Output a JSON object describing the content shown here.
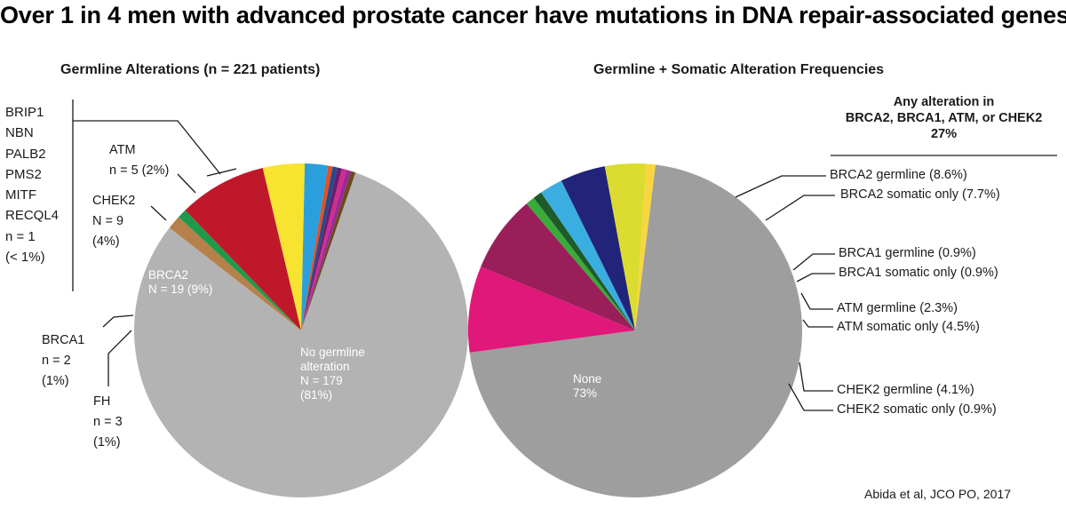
{
  "title": "Over 1 in 4 men with advanced prostate cancer have mutations in DNA repair-associated genes",
  "citation": "Abida et al, JCO PO, 2017",
  "chart_data": [
    {
      "type": "pie",
      "title": "Germline Alterations (n = 221 patients)",
      "slices": [
        {
          "name": "No germline alteration",
          "value": 179,
          "percent": "81%",
          "color": "#b3b3b3"
        },
        {
          "name": "FH",
          "value": 3,
          "percent": "1%",
          "color": "#b5804a"
        },
        {
          "name": "BRCA1",
          "value": 2,
          "percent": "1%",
          "color": "#1f9a4a"
        },
        {
          "name": "BRCA2",
          "value": 19,
          "percent": "9%",
          "color": "#c0182b"
        },
        {
          "name": "CHEK2",
          "value": 9,
          "percent": "4%",
          "color": "#f7e330"
        },
        {
          "name": "ATM",
          "value": 5,
          "percent": "2%",
          "color": "#2a9fdc"
        },
        {
          "name": "RECQL4",
          "value": 1,
          "percent": "< 1%",
          "color": "#e0502a"
        },
        {
          "name": "MITF",
          "value": 1,
          "percent": "< 1%",
          "color": "#234a8a"
        },
        {
          "name": "PMS2",
          "value": 1,
          "percent": "< 1%",
          "color": "#6a1e6e"
        },
        {
          "name": "PALB2",
          "value": 1,
          "percent": "< 1%",
          "color": "#d42a8e"
        },
        {
          "name": "NBN",
          "value": 1,
          "percent": "< 1%",
          "color": "#9a2a9a"
        },
        {
          "name": "BRIP1",
          "value": 1,
          "percent": "< 1%",
          "color": "#6b4a1e"
        }
      ],
      "labels": {
        "none_line1": "No germline",
        "none_line2": "alteration",
        "none_line3": "N = 179",
        "none_line4": "(81%)",
        "brca2_line1": "BRCA2",
        "brca2_line2": "N = 19 (9%)",
        "chek2_line1": "CHEK2",
        "chek2_line2": "N = 9",
        "chek2_line3": "(4%)",
        "atm_line1": "ATM",
        "atm_line2": "n = 5 (2%)",
        "brca1_line1": "BRCA1",
        "brca1_line2": "n = 2",
        "brca1_line3": "(1%)",
        "fh_line1": "FH",
        "fh_line2": "n = 3",
        "fh_line3": "(1%)",
        "group_genes": [
          "BRIP1",
          "NBN",
          "PALB2",
          "PMS2",
          "MITF",
          "RECQL4"
        ],
        "group_count": "n = 1",
        "group_percent": "(< 1%)"
      }
    },
    {
      "type": "pie",
      "title": "Germline + Somatic Alteration Frequencies",
      "annotation_line1": "Any alteration in",
      "annotation_line2": "BRCA2, BRCA1, ATM, or CHEK2",
      "annotation_line3": "27%",
      "slices": [
        {
          "name": "None",
          "value": 73,
          "label": "73%",
          "color": "#9e9e9e"
        },
        {
          "name": "BRCA2 germline",
          "value": 8.6,
          "label": "BRCA2 germline (8.6%)",
          "color": "#e0187a"
        },
        {
          "name": "BRCA2 somatic only",
          "value": 7.7,
          "label": "BRCA2 somatic only (7.7%)",
          "color": "#9a1e5a"
        },
        {
          "name": "BRCA1 germline",
          "value": 0.9,
          "label": "BRCA1 germline (0.9%)",
          "color": "#3aaa3a"
        },
        {
          "name": "BRCA1 somatic only",
          "value": 0.9,
          "label": "BRCA1 somatic only (0.9%)",
          "color": "#1e5a2a"
        },
        {
          "name": "ATM germline",
          "value": 2.3,
          "label": "ATM germline (2.3%)",
          "color": "#3aaee0"
        },
        {
          "name": "ATM somatic only",
          "value": 4.5,
          "label": "ATM somatic only (4.5%)",
          "color": "#22247a"
        },
        {
          "name": "CHEK2 germline",
          "value": 4.1,
          "label": "CHEK2 germline (4.1%)",
          "color": "#dcdc30"
        },
        {
          "name": "CHEK2 somatic only",
          "value": 0.9,
          "label": "CHEK2 somatic only (0.9%)",
          "color": "#f7d640"
        }
      ]
    }
  ]
}
